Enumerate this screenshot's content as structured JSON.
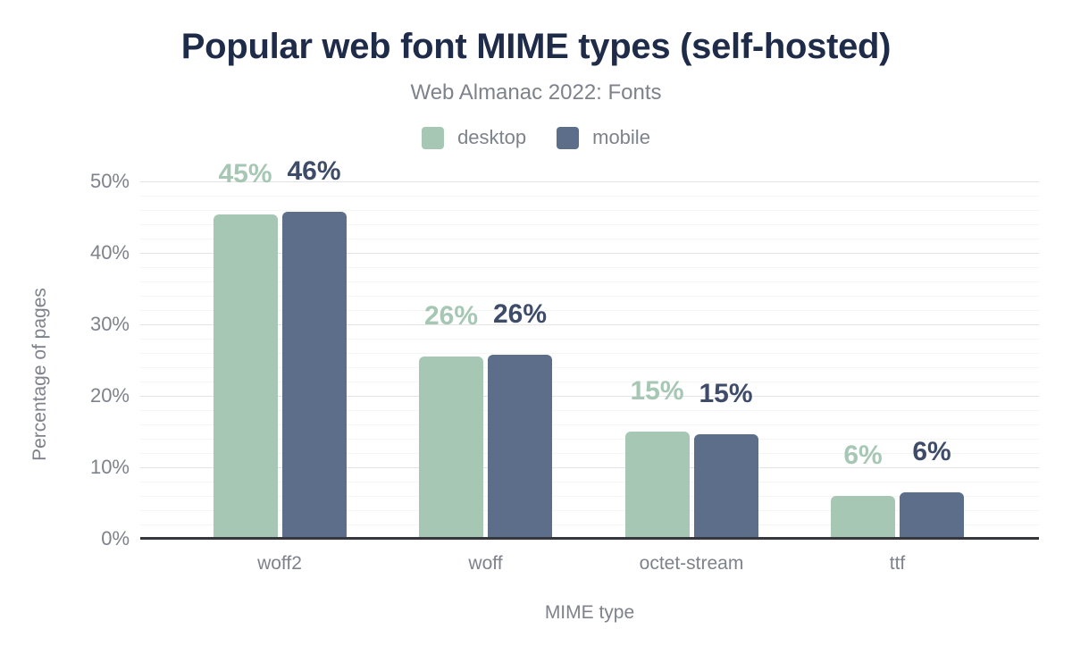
{
  "header": {
    "title": "Popular web font MIME types (self-hosted)",
    "subtitle": "Web Almanac 2022: Fonts"
  },
  "colors": {
    "background": "#ffffff",
    "title_text": "#1e2b49",
    "muted_text": "#7d828b",
    "axis_line": "#35373d",
    "grid_major": "#e4e4e7",
    "grid_minor": "#f5f5f6"
  },
  "chart_data": {
    "type": "bar",
    "title": "Popular web font MIME types (self-hosted)",
    "subtitle": "Web Almanac 2022: Fonts",
    "xlabel": "MIME type",
    "ylabel": "Percentage of pages",
    "ylim": [
      0,
      50
    ],
    "ytick_step": 10,
    "minor_grid_step": 2,
    "ytick_suffix": "%",
    "grid": "horizontal",
    "legend_position": "top",
    "categories": [
      "woff2",
      "woff",
      "octet-stream",
      "ttf"
    ],
    "series": [
      {
        "name": "desktop",
        "color": "#a7c7b5",
        "label_color": "#a7c7b5",
        "values": [
          45.4,
          25.5,
          15.0,
          6.0
        ],
        "labels": [
          "45%",
          "26%",
          "15%",
          "6%"
        ]
      },
      {
        "name": "mobile",
        "color": "#5c6e8a",
        "label_color": "#3e4c6a",
        "values": [
          45.7,
          25.8,
          14.6,
          6.5
        ],
        "labels": [
          "46%",
          "26%",
          "15%",
          "6%"
        ]
      }
    ]
  }
}
